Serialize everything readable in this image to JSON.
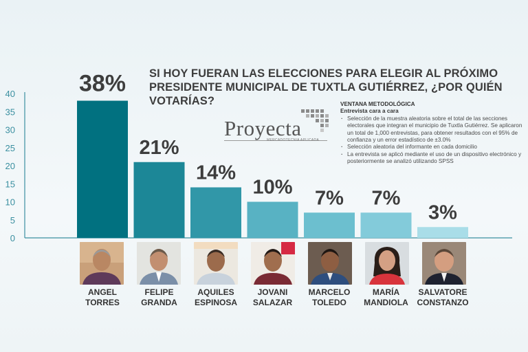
{
  "chart_data": {
    "type": "bar",
    "title": "SI HOY FUERAN LAS ELECCIONES PARA ELEGIR AL PRÓXIMO PRESIDENTE MUNICIPAL DE TUXTLA GUTIÉRREZ, ¿POR QUIÉN VOTARÍAS?",
    "categories": [
      "ANGEL TORRES",
      "FELIPE GRANDA",
      "AQUILES ESPINOSA",
      "JOVANI SALAZAR",
      "MARCELO TOLEDO",
      "MARÍA MANDIOLA",
      "SALVATORE CONSTANZO"
    ],
    "category_lines": [
      [
        "ANGEL",
        "TORRES"
      ],
      [
        "FELIPE",
        "GRANDA"
      ],
      [
        "AQUILES",
        "ESPINOSA"
      ],
      [
        "JOVANI",
        "SALAZAR"
      ],
      [
        "MARCELO",
        "TOLEDO"
      ],
      [
        "MARÍA",
        "MANDIOLA"
      ],
      [
        "SALVATORE",
        "CONSTANZO"
      ]
    ],
    "values": [
      38,
      21,
      14,
      10,
      7,
      7,
      3
    ],
    "data_labels": [
      "38%",
      "21%",
      "14%",
      "10%",
      "7%",
      "7%",
      "3%"
    ],
    "bar_colors": [
      "#017180",
      "#1c8797",
      "#3197a8",
      "#58b2c3",
      "#6cbfcf",
      "#83cbda",
      "#a9dde8"
    ],
    "ylim": [
      0,
      40
    ],
    "yticks": [
      0,
      5,
      10,
      15,
      20,
      25,
      30,
      35,
      40
    ],
    "grid": false,
    "xlabel": "",
    "ylabel": ""
  },
  "methodology": {
    "heading": "VENTANA METODOLÓGICA",
    "subheading": "Entrevista cara a cara",
    "items": [
      "Selección de la muestra aleatoria sobre el total de las secciones electorales que integran el municipio de Tuxtla Gutiérrez. Se aplicaron un total de 1,000 entrevistas, para obtener resultados con el 95% de confianza y un error estadístico de ±3.0%",
      "Selección aleatoria del informante en cada domicilio",
      "La entrevista se aplicó mediante el uso de un dispositivo electrónico y posteriormente se analizó utilizando SPSS"
    ]
  },
  "logo": {
    "name": "Proyecta",
    "tagline": "MERCADOTECNIA APLICADA"
  },
  "colors": {
    "axis": "#3a8fa0",
    "tick_text": "#3a8fa0",
    "data_label": "#3d3d3d",
    "title": "#3d3d3d"
  }
}
